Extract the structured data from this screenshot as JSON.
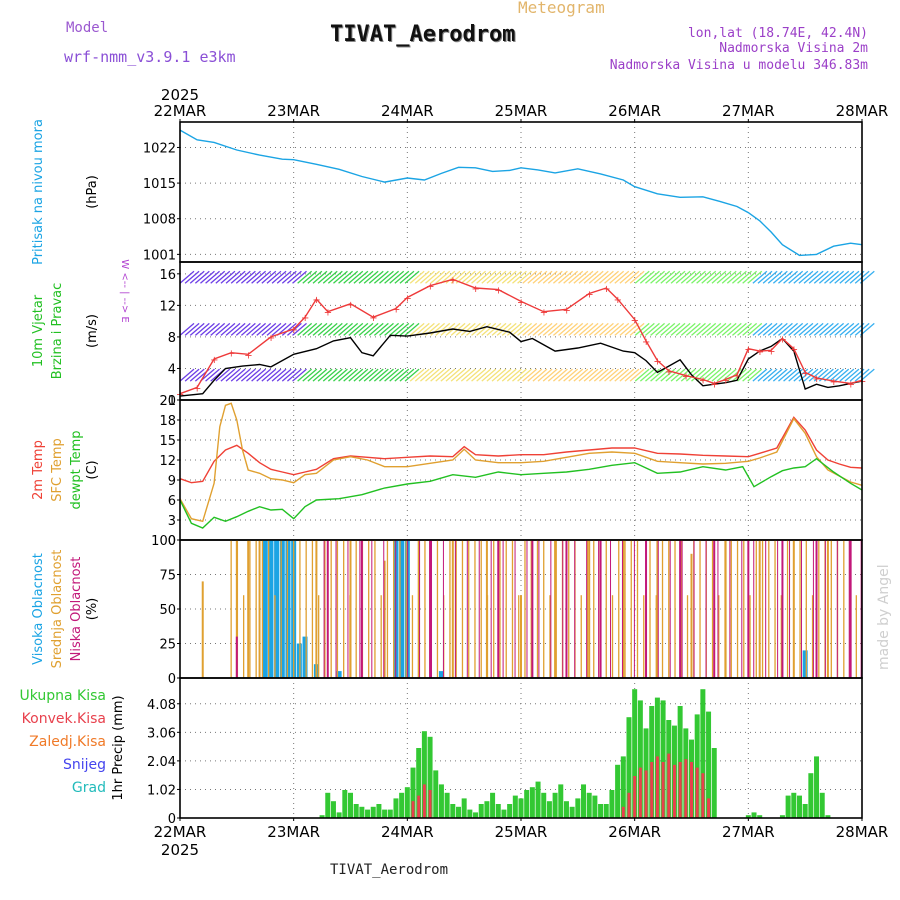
{
  "header": {
    "model_label": "Model",
    "model_name": "wrf-nmm_v3.9.1 e3km",
    "title": "TIVAT_Aerodrom",
    "product": "Meteogram",
    "location": "lon,lat (18.74E, 42.4N)",
    "station_height": "Nadmorska Visina 2m",
    "model_height": "Nadmorska Visina u modelu 346.83m",
    "footer": "TIVAT_Aerodrom",
    "credit": "made by Angel"
  },
  "colors": {
    "pressure": "#1ba4e4",
    "wind_speed": "#000000",
    "wind_gust": "#ee3a3a",
    "t2m": "#ef4136",
    "tsfc": "#e0a030",
    "dewpoint": "#22c022",
    "cloud_high": "#1ba4e4",
    "cloud_mid": "#e0a030",
    "cloud_low": "#c2187a",
    "precip_total": "#33c833",
    "precip_conv": "#e8414d",
    "precip_frz": "#f07a28",
    "precip_snow": "#4444ee",
    "precip_grad": "#22bbbb"
  },
  "chart_data": [
    {
      "type": "line",
      "name": "pressure",
      "title": "Pritisak na nivou mora",
      "ylabel": "(hPa)",
      "ylim": [
        999.5,
        1027
      ],
      "yticks": [
        1001,
        1008,
        1015,
        1022
      ],
      "x_start_year": "2025",
      "xticks": [
        "22MAR",
        "23MAR",
        "24MAR",
        "25MAR",
        "26MAR",
        "27MAR",
        "28MAR"
      ],
      "grid": true,
      "series": [
        {
          "name": "MSLP",
          "x": [
            0,
            0.15,
            0.3,
            0.5,
            0.7,
            0.9,
            1.0,
            1.2,
            1.4,
            1.6,
            1.8,
            2.0,
            2.15,
            2.3,
            2.45,
            2.6,
            2.75,
            2.9,
            3.0,
            3.15,
            3.3,
            3.5,
            3.7,
            3.9,
            4.0,
            4.2,
            4.4,
            4.6,
            4.75,
            4.9,
            5.0,
            5.1,
            5.2,
            5.3,
            5.45,
            5.6,
            5.75,
            5.9,
            6.0
          ],
          "values": [
            1025.4,
            1023.5,
            1023.0,
            1021.5,
            1020.5,
            1019.7,
            1019.6,
            1018.7,
            1017.7,
            1016.3,
            1015.2,
            1016.0,
            1015.6,
            1016.9,
            1018.1,
            1018.0,
            1017.3,
            1017.5,
            1018.0,
            1017.6,
            1017.0,
            1017.8,
            1016.8,
            1015.6,
            1014.3,
            1012.9,
            1012.2,
            1012.3,
            1011.4,
            1010.4,
            1009.2,
            1007.6,
            1005.4,
            1002.9,
            1000.8,
            1001.0,
            1002.6,
            1003.2,
            1002.9
          ]
        }
      ]
    },
    {
      "type": "line",
      "name": "wind",
      "title_lines": [
        "10m Vjetar",
        "Brzina i Pravac"
      ],
      "ylabel": "(m/s)",
      "compass_label": "W <-- | --> E",
      "ylim": [
        0,
        17.5
      ],
      "yticks": [
        0,
        4,
        8,
        12,
        16
      ],
      "grid": true,
      "barb_rows": [
        {
          "y": 2.4,
          "from": 0.0,
          "to": 6.0,
          "colors": [
            "#6d3fe6",
            "#3ad14c",
            "#f4e27a",
            "#ffd27a",
            "#7cf36a",
            "#38b0f0"
          ]
        },
        {
          "y": 8.2,
          "from": 0.0,
          "to": 6.0,
          "colors": [
            "#6d3fe6",
            "#3ad14c",
            "#f4e27a",
            "#ffd27a",
            "#7cf36a",
            "#38b0f0"
          ]
        },
        {
          "y": 14.8,
          "from": 0.0,
          "to": 6.0,
          "colors": [
            "#6d3fe6",
            "#3ad14c",
            "#f4e27a",
            "#ffd27a",
            "#7cf36a",
            "#38b0f0"
          ]
        }
      ],
      "series": [
        {
          "name": "Wind speed",
          "x": [
            0,
            0.2,
            0.3,
            0.4,
            0.55,
            0.7,
            0.8,
            1.0,
            1.2,
            1.35,
            1.5,
            1.6,
            1.7,
            1.85,
            2.0,
            2.2,
            2.4,
            2.55,
            2.7,
            2.9,
            3.0,
            3.1,
            3.3,
            3.5,
            3.7,
            3.9,
            4.0,
            4.1,
            4.2,
            4.3,
            4.4,
            4.5,
            4.6,
            4.7,
            4.8,
            4.9,
            5.0,
            5.1,
            5.2,
            5.3,
            5.4,
            5.5,
            5.6,
            5.7,
            5.8,
            6.0
          ],
          "values": [
            0.5,
            0.8,
            2.5,
            4.0,
            4.3,
            4.5,
            4.2,
            5.8,
            6.5,
            7.5,
            7.9,
            6.0,
            5.6,
            8.2,
            8.1,
            8.5,
            9.0,
            8.7,
            9.3,
            8.6,
            7.4,
            7.8,
            6.2,
            6.6,
            7.2,
            6.2,
            6.0,
            5.0,
            3.5,
            4.3,
            5.1,
            3.2,
            1.8,
            2.0,
            2.2,
            2.5,
            5.2,
            6.2,
            6.8,
            7.8,
            6.2,
            1.4,
            2.0,
            1.6,
            1.8,
            2.4
          ]
        },
        {
          "name": "Wind gust",
          "x": [
            0,
            0.15,
            0.3,
            0.45,
            0.6,
            0.8,
            1.0,
            1.1,
            1.2,
            1.3,
            1.5,
            1.7,
            1.9,
            2.0,
            2.2,
            2.4,
            2.6,
            2.8,
            3.0,
            3.2,
            3.4,
            3.6,
            3.75,
            3.85,
            4.0,
            4.1,
            4.2,
            4.3,
            4.45,
            4.6,
            4.7,
            4.8,
            4.9,
            5.0,
            5.1,
            5.2,
            5.3,
            5.4,
            5.5,
            5.6,
            5.75,
            5.9,
            6.0
          ],
          "values": [
            0.8,
            1.6,
            5.2,
            6.0,
            5.8,
            8.0,
            9.0,
            10.5,
            12.8,
            11.2,
            12.2,
            10.5,
            11.6,
            13.0,
            14.5,
            15.3,
            14.2,
            14.0,
            12.5,
            11.2,
            11.5,
            13.5,
            14.2,
            12.8,
            10.2,
            7.5,
            5.0,
            3.7,
            3.1,
            2.6,
            2.1,
            2.6,
            3.2,
            6.5,
            6.2,
            6.3,
            7.8,
            6.5,
            3.5,
            2.8,
            2.4,
            2.1,
            2.5
          ]
        }
      ]
    },
    {
      "type": "line",
      "name": "temperature",
      "title_lines": [
        "2m Temp",
        "SFC Temp",
        "dewpt Temp"
      ],
      "ylabel": "(C)",
      "ylim": [
        0,
        21
      ],
      "yticks": [
        0,
        3,
        6,
        9,
        12,
        15,
        18,
        21
      ],
      "grid": true,
      "series": [
        {
          "name": "2m Temp",
          "x": [
            0,
            0.1,
            0.2,
            0.3,
            0.4,
            0.5,
            0.6,
            0.7,
            0.8,
            0.9,
            1.0,
            1.1,
            1.2,
            1.35,
            1.5,
            1.65,
            1.8,
            2.0,
            2.2,
            2.4,
            2.5,
            2.6,
            2.8,
            3.0,
            3.2,
            3.4,
            3.6,
            3.8,
            4.0,
            4.2,
            4.4,
            4.6,
            4.8,
            5.0,
            5.1,
            5.25,
            5.4,
            5.5,
            5.6,
            5.7,
            5.8,
            5.9,
            6.0
          ],
          "values": [
            9.2,
            8.6,
            8.8,
            11.8,
            13.5,
            14.2,
            13.0,
            11.6,
            10.6,
            10.2,
            9.8,
            10.2,
            10.6,
            12.2,
            12.6,
            12.4,
            12.2,
            12.4,
            12.6,
            12.5,
            14.0,
            12.8,
            12.6,
            12.8,
            12.8,
            13.2,
            13.5,
            13.8,
            13.8,
            13.0,
            12.9,
            12.7,
            12.6,
            12.5,
            13.0,
            13.8,
            18.4,
            16.5,
            13.5,
            12.0,
            11.4,
            10.9,
            10.8
          ]
        },
        {
          "name": "SFC Temp",
          "x": [
            0,
            0.1,
            0.2,
            0.3,
            0.35,
            0.4,
            0.45,
            0.5,
            0.55,
            0.6,
            0.7,
            0.8,
            0.9,
            1.0,
            1.1,
            1.2,
            1.35,
            1.5,
            1.65,
            1.8,
            2.0,
            2.2,
            2.4,
            2.5,
            2.6,
            2.8,
            3.0,
            3.2,
            3.4,
            3.6,
            3.8,
            4.0,
            4.2,
            4.4,
            4.6,
            4.8,
            5.0,
            5.1,
            5.25,
            5.4,
            5.5,
            5.6,
            5.7,
            5.8,
            5.9,
            6.0
          ],
          "values": [
            6.2,
            3.2,
            2.8,
            8.5,
            17.0,
            20.2,
            20.5,
            18.0,
            13.5,
            10.5,
            10.0,
            9.2,
            9.0,
            8.6,
            9.8,
            10.0,
            12.0,
            12.5,
            12.0,
            11.0,
            11.0,
            11.5,
            12.0,
            13.6,
            12.0,
            11.6,
            11.6,
            11.8,
            12.4,
            13.0,
            13.2,
            13.0,
            11.8,
            11.6,
            11.4,
            11.5,
            11.8,
            12.3,
            13.2,
            18.2,
            16.0,
            12.5,
            10.5,
            9.6,
            8.7,
            8.2
          ]
        },
        {
          "name": "dewpt Temp",
          "x": [
            0,
            0.1,
            0.2,
            0.3,
            0.4,
            0.5,
            0.6,
            0.7,
            0.8,
            0.9,
            1.0,
            1.1,
            1.2,
            1.4,
            1.6,
            1.8,
            2.0,
            2.2,
            2.4,
            2.6,
            2.8,
            3.0,
            3.2,
            3.4,
            3.6,
            3.8,
            4.0,
            4.2,
            4.4,
            4.6,
            4.8,
            4.95,
            5.05,
            5.2,
            5.3,
            5.4,
            5.5,
            5.6,
            5.75,
            5.9,
            6.0
          ],
          "values": [
            6.0,
            2.5,
            1.8,
            3.4,
            2.8,
            3.5,
            4.3,
            5.0,
            4.5,
            4.6,
            3.2,
            5.0,
            6.0,
            6.2,
            6.8,
            7.8,
            8.4,
            8.8,
            9.8,
            9.4,
            10.2,
            9.8,
            10.0,
            10.2,
            10.6,
            11.2,
            11.6,
            10.0,
            10.2,
            11.0,
            10.5,
            11.0,
            8.0,
            9.5,
            10.4,
            10.8,
            11.0,
            12.2,
            10.2,
            8.5,
            7.5
          ]
        }
      ]
    },
    {
      "type": "bar",
      "name": "clouds",
      "title_lines": [
        "Visoka Oblacnost",
        "Srednja Oblacnost",
        "Niska Oblacnost"
      ],
      "ylabel": "(%)",
      "ylim": [
        0,
        100
      ],
      "yticks": [
        0,
        25,
        50,
        75,
        100
      ],
      "grid": true,
      "series": [
        {
          "name": "Visoka",
          "note": "high cloud near 100% at 22MAR 18h - 23MAR 00h and around 24MAR 00h, else low",
          "x": [
            0.75,
            0.8,
            0.85,
            0.9,
            0.95,
            1.0,
            1.05,
            1.1,
            1.2,
            1.4,
            1.9,
            1.95,
            2.0,
            2.3,
            2.5,
            3.5,
            4.0,
            4.5,
            5.5,
            6.0
          ],
          "values": [
            100,
            100,
            100,
            100,
            100,
            100,
            25,
            30,
            10,
            5,
            100,
            100,
            100,
            5,
            0,
            0,
            0,
            0,
            20,
            0
          ]
        },
        {
          "name": "Srednja",
          "note": "mid cloud mostly 100% with frequent drops",
          "x": [
            0.2,
            0.5,
            0.6,
            0.7,
            1.2,
            1.5,
            1.8,
            2.1,
            2.4,
            2.7,
            3.0,
            3.3,
            3.6,
            3.9,
            4.2,
            4.5,
            4.8,
            5.1,
            5.4,
            5.7
          ],
          "values": [
            70,
            100,
            100,
            100,
            100,
            100,
            85,
            100,
            100,
            100,
            60,
            100,
            100,
            100,
            100,
            90,
            100,
            100,
            100,
            100
          ]
        },
        {
          "name": "Niska",
          "note": "low cloud spikes to 100% on most days",
          "x": [
            0.5,
            1.3,
            1.6,
            2.2,
            2.8,
            3.1,
            3.4,
            3.7,
            4.1,
            4.4,
            4.7,
            5.0,
            5.3,
            5.6,
            5.9
          ],
          "values": [
            30,
            100,
            100,
            100,
            100,
            100,
            100,
            100,
            100,
            100,
            100,
            100,
            100,
            100,
            100
          ]
        }
      ]
    },
    {
      "type": "bar",
      "name": "precip",
      "title_lines": [
        "Ukupna Kisa",
        "Konvek.Kisa",
        "Zaledj.Kisa",
        "Snijeg",
        "Grad"
      ],
      "ylabel": "1hr Precip (mm)",
      "ylim": [
        0,
        5.0
      ],
      "yticks": [
        0,
        1.02,
        2.04,
        3.06,
        4.08
      ],
      "grid": true,
      "x_start_year": "2025",
      "xticks": [
        "22MAR",
        "23MAR",
        "24MAR",
        "25MAR",
        "26MAR",
        "27MAR",
        "28MAR"
      ],
      "series": [
        {
          "name": "Ukupna Kisa",
          "x": [
            1.25,
            1.3,
            1.35,
            1.4,
            1.45,
            1.5,
            1.55,
            1.6,
            1.65,
            1.7,
            1.75,
            1.8,
            1.85,
            1.9,
            1.95,
            2.0,
            2.05,
            2.1,
            2.15,
            2.2,
            2.25,
            2.3,
            2.35,
            2.4,
            2.45,
            2.5,
            2.55,
            2.6,
            2.65,
            2.7,
            2.75,
            2.8,
            2.85,
            2.9,
            2.95,
            3.0,
            3.05,
            3.1,
            3.15,
            3.2,
            3.25,
            3.3,
            3.35,
            3.4,
            3.45,
            3.5,
            3.55,
            3.6,
            3.65,
            3.7,
            3.75,
            3.8,
            3.85,
            3.9,
            3.95,
            4.0,
            4.05,
            4.1,
            4.15,
            4.2,
            4.25,
            4.3,
            4.35,
            4.4,
            4.45,
            4.5,
            4.55,
            4.6,
            4.65,
            4.7,
            5.0,
            5.05,
            5.1,
            5.3,
            5.35,
            5.4,
            5.45,
            5.5,
            5.55,
            5.6,
            5.65,
            5.7
          ],
          "values": [
            0.1,
            0.9,
            0.6,
            0.2,
            1.0,
            0.9,
            0.5,
            0.4,
            0.3,
            0.4,
            0.5,
            0.3,
            0.3,
            0.7,
            0.9,
            1.1,
            1.8,
            2.5,
            3.1,
            2.9,
            1.7,
            1.2,
            0.9,
            0.5,
            0.4,
            0.7,
            0.3,
            0.2,
            0.5,
            0.6,
            0.9,
            0.5,
            0.3,
            0.5,
            0.8,
            0.7,
            1.0,
            1.1,
            1.3,
            0.9,
            0.6,
            0.9,
            1.2,
            0.6,
            0.4,
            0.7,
            1.2,
            0.9,
            0.8,
            0.5,
            0.5,
            1.0,
            1.9,
            2.2,
            3.6,
            4.6,
            4.2,
            3.2,
            4.0,
            4.3,
            4.2,
            3.5,
            3.3,
            4.0,
            3.2,
            2.8,
            3.7,
            4.6,
            3.8,
            2.5,
            0.1,
            0.2,
            0.1,
            0.1,
            0.8,
            0.9,
            0.8,
            0.5,
            1.6,
            2.2,
            0.9,
            0.1
          ]
        },
        {
          "name": "Konvek.Kisa",
          "x": [
            2.05,
            2.1,
            2.15,
            2.2,
            3.9,
            3.95,
            4.0,
            4.05,
            4.1,
            4.15,
            4.2,
            4.25,
            4.3,
            4.35,
            4.4,
            4.45,
            4.5,
            4.55,
            4.6,
            4.65
          ],
          "values": [
            0.6,
            0.8,
            1.2,
            1.0,
            0.4,
            0.9,
            1.5,
            1.8,
            1.7,
            2.0,
            2.2,
            2.0,
            2.3,
            1.9,
            2.0,
            2.1,
            2.0,
            1.8,
            1.6,
            0.7
          ]
        }
      ]
    }
  ]
}
